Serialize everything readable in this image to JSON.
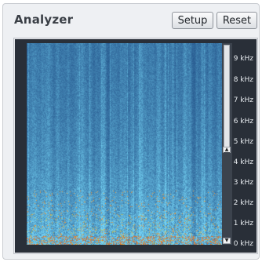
{
  "window": {
    "title": "Analyzer"
  },
  "buttons": {
    "setup_label": "Setup",
    "reset_label": "Reset"
  },
  "frequency_axis": {
    "labels": [
      "9 kHz",
      "8 kHz",
      "7 kHz",
      "6 kHz",
      "5 kHz",
      "4 kHz",
      "3 kHz",
      "2 kHz",
      "1 kHz",
      "0 kHz"
    ]
  },
  "scrollbar": {
    "up_arrow": "▲",
    "down_arrow": "▼"
  },
  "colors": {
    "display_background": "#292f38",
    "spectrogram_base": "#1f4f8a",
    "spectrogram_light": "#7fd2f2",
    "spectrogram_hot": "#e86a2a",
    "spectrogram_warm": "#c8c24a"
  }
}
